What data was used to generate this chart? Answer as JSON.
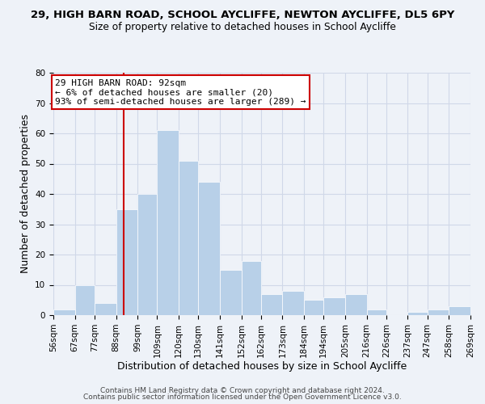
{
  "title1": "29, HIGH BARN ROAD, SCHOOL AYCLIFFE, NEWTON AYCLIFFE, DL5 6PY",
  "title2": "Size of property relative to detached houses in School Aycliffe",
  "xlabel": "Distribution of detached houses by size in School Aycliffe",
  "ylabel": "Number of detached properties",
  "bin_labels": [
    "56sqm",
    "67sqm",
    "77sqm",
    "88sqm",
    "99sqm",
    "109sqm",
    "120sqm",
    "130sqm",
    "141sqm",
    "152sqm",
    "162sqm",
    "173sqm",
    "184sqm",
    "194sqm",
    "205sqm",
    "216sqm",
    "226sqm",
    "237sqm",
    "247sqm",
    "258sqm",
    "269sqm"
  ],
  "bin_edges": [
    56,
    67,
    77,
    88,
    99,
    109,
    120,
    130,
    141,
    152,
    162,
    173,
    184,
    194,
    205,
    216,
    226,
    237,
    247,
    258,
    269
  ],
  "counts": [
    2,
    10,
    4,
    35,
    40,
    61,
    51,
    44,
    15,
    18,
    7,
    8,
    5,
    6,
    7,
    2,
    0,
    1,
    2,
    3
  ],
  "bar_color": "#b8d0e8",
  "vline_x": 92,
  "vline_color": "#cc0000",
  "annotation_line1": "29 HIGH BARN ROAD: 92sqm",
  "annotation_line2": "← 6% of detached houses are smaller (20)",
  "annotation_line3": "93% of semi-detached houses are larger (289) →",
  "annotation_box_color": "#ffffff",
  "annotation_box_edge": "#cc0000",
  "ylim": [
    0,
    80
  ],
  "yticks": [
    0,
    10,
    20,
    30,
    40,
    50,
    60,
    70,
    80
  ],
  "grid_color": "#d0d8e8",
  "background_color": "#eef2f8",
  "footer1": "Contains HM Land Registry data © Crown copyright and database right 2024.",
  "footer2": "Contains public sector information licensed under the Open Government Licence v3.0.",
  "title_fontsize": 9.5,
  "subtitle_fontsize": 8.8,
  "axis_label_fontsize": 9,
  "tick_fontsize": 7.5,
  "annotation_fontsize": 8,
  "footer_fontsize": 6.5
}
